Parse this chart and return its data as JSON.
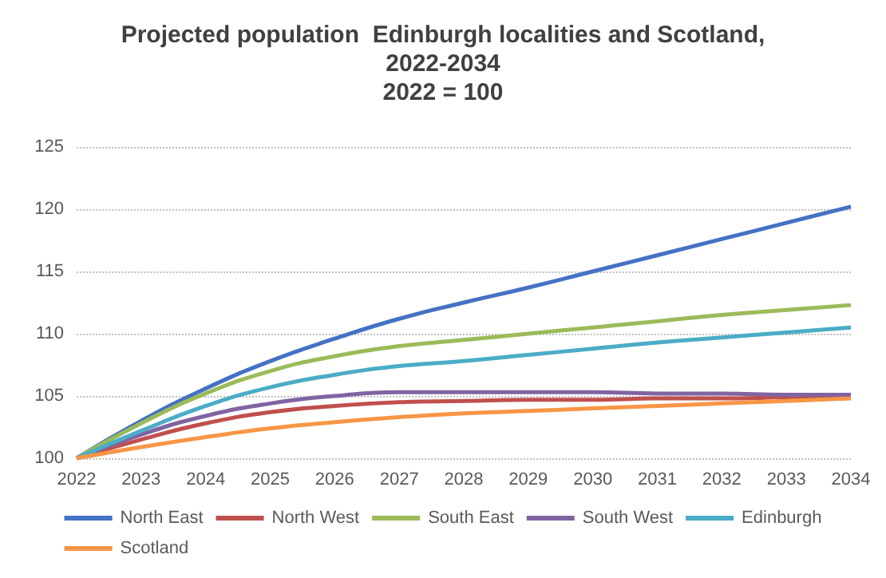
{
  "chart_data": {
    "type": "line",
    "title": "Projected population  Edinburgh localities and Scotland,\n2022-2034\n2022 = 100",
    "categories": [
      "2022",
      "2023",
      "2024",
      "2025",
      "2026",
      "2027",
      "2028",
      "2029",
      "2030",
      "2031",
      "2032",
      "2033",
      "2034"
    ],
    "series": [
      {
        "name": "North East",
        "color": "#4472c4",
        "values": [
          100,
          103.0,
          105.6,
          107.8,
          109.6,
          111.2,
          112.5,
          113.7,
          115.0,
          116.3,
          117.6,
          118.9,
          120.2
        ]
      },
      {
        "name": "North West",
        "color": "#c0504d",
        "values": [
          100,
          101.5,
          102.8,
          103.7,
          104.2,
          104.5,
          104.6,
          104.7,
          104.7,
          104.8,
          104.8,
          104.9,
          105.0
        ]
      },
      {
        "name": "South East",
        "color": "#9bbb59",
        "values": [
          100,
          102.8,
          105.2,
          107.0,
          108.2,
          109.0,
          109.5,
          110.0,
          110.5,
          111.0,
          111.5,
          111.9,
          112.3
        ]
      },
      {
        "name": "South West",
        "color": "#8064a2",
        "values": [
          100,
          101.9,
          103.4,
          104.4,
          105.0,
          105.3,
          105.3,
          105.3,
          105.3,
          105.2,
          105.2,
          105.1,
          105.1
        ]
      },
      {
        "name": "Edinburgh",
        "color": "#4bacc6",
        "values": [
          100,
          102.2,
          104.2,
          105.7,
          106.7,
          107.4,
          107.8,
          108.3,
          108.8,
          109.3,
          109.7,
          110.1,
          110.5
        ]
      },
      {
        "name": "Scotland",
        "color": "#f79646",
        "values": [
          100,
          100.9,
          101.7,
          102.4,
          102.9,
          103.3,
          103.6,
          103.8,
          104.0,
          104.2,
          104.4,
          104.6,
          104.8
        ]
      }
    ],
    "ylim": [
      100,
      125
    ],
    "yticks": [
      100,
      105,
      110,
      115,
      120,
      125
    ],
    "grid": "y",
    "legend": "bottom",
    "marker": "none",
    "line_style": "solid"
  }
}
